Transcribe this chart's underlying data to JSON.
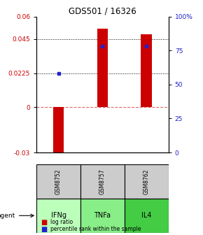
{
  "title": "GDS501 / 16326",
  "samples": [
    "GSM8752",
    "GSM8757",
    "GSM8762"
  ],
  "agents": [
    "IFNg",
    "TNFa",
    "IL4"
  ],
  "log_ratios": [
    -0.033,
    0.052,
    0.048
  ],
  "percentile_ranks_pct": [
    58,
    78,
    78
  ],
  "ylim_left": [
    -0.03,
    0.06
  ],
  "ylim_right": [
    0,
    100
  ],
  "yticks_left": [
    -0.03,
    0,
    0.0225,
    0.045,
    0.06
  ],
  "ytick_labels_left": [
    "-0.03",
    "0",
    "0.0225",
    "0.045",
    "0.06"
  ],
  "yticks_right": [
    0,
    25,
    50,
    75,
    100
  ],
  "ytick_labels_right": [
    "0",
    "25",
    "50",
    "75",
    "100%"
  ],
  "hlines": [
    0.0225,
    0.045
  ],
  "bar_color": "#cc0000",
  "dot_color": "#2222cc",
  "agent_colors": [
    "#bbffbb",
    "#88ee88",
    "#44cc44"
  ],
  "sample_bg": "#cccccc",
  "bar_width": 0.25
}
